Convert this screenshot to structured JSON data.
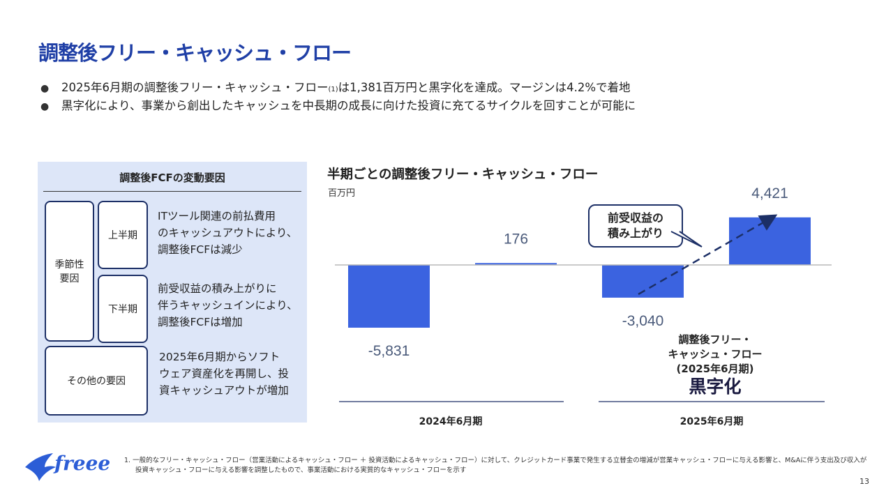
{
  "title": "調整後フリー・キャッシュ・フロー",
  "bullets": {
    "b1_pre": "2025年6月期の調整後フリー・キャッシュ・フロー",
    "b1_sup": "(1)",
    "b1_post": "は1,381百万円と黒字化を達成。マージンは4.2%で着地",
    "b2": "黒字化により、事業から創出したキャッシュを中長期の成長に向けた投資に充てるサイクルを回すことが可能に"
  },
  "panel": {
    "title": "調整後FCFの変動要因",
    "seasonal_line1": "季節性",
    "seasonal_line2": "要因",
    "first_half": "上半期",
    "second_half": "下半期",
    "first_half_desc": [
      "ITツール関連の前払費用",
      "のキャッシュアウトにより、",
      "調整後FCFは減少"
    ],
    "second_half_desc": [
      "前受収益の積み上がりに",
      "伴うキャッシュインにより、",
      "調整後FCFは増加"
    ],
    "other": "その他の要因",
    "other_desc": [
      "2025年6月期からソフト",
      "ウェア資産化を再開し、投",
      "資キャッシュアウトが増加"
    ]
  },
  "chart_title": "半期ごとの調整後フリー・キャッシュ・フロー",
  "chart_data": {
    "type": "bar",
    "title": "半期ごとの調整後フリー・キャッシュ・フロー",
    "ylabel": "百万円",
    "groups": [
      "2024年6月期",
      "2025年6月期"
    ],
    "values": [
      -5831,
      176,
      -3040,
      4421
    ],
    "value_labels": [
      "-5,831",
      "176",
      "-3,040",
      "4,421"
    ],
    "ylim": [
      -6500,
      5000
    ],
    "color": "#3b63e0",
    "annotation": "前受収益の積み上がり"
  },
  "callout": [
    "前受収益の",
    "積み上がり"
  ],
  "result": [
    "調整後フリー・",
    "キャッシュ・フロー",
    "(2025年6月期)"
  ],
  "result_big": "黒字化",
  "brand": "freee",
  "footnote": {
    "line1": "1.  一般的なフリー・キャッシュ・フロー（営業活動によるキャッシュ・フロー ＋ 投資活動によるキャッシュ・フロー）に対して、クレジットカード事業で発生する立替金の増減が営業キャッシュ・フローに与える影響と、M&Aに伴う支出及び収入が",
    "line2": "投資キャッシュ・フローに与える影響を調整したもので、事業活動における実質的なキャッシュ・フローを示す"
  },
  "page_number": "13"
}
